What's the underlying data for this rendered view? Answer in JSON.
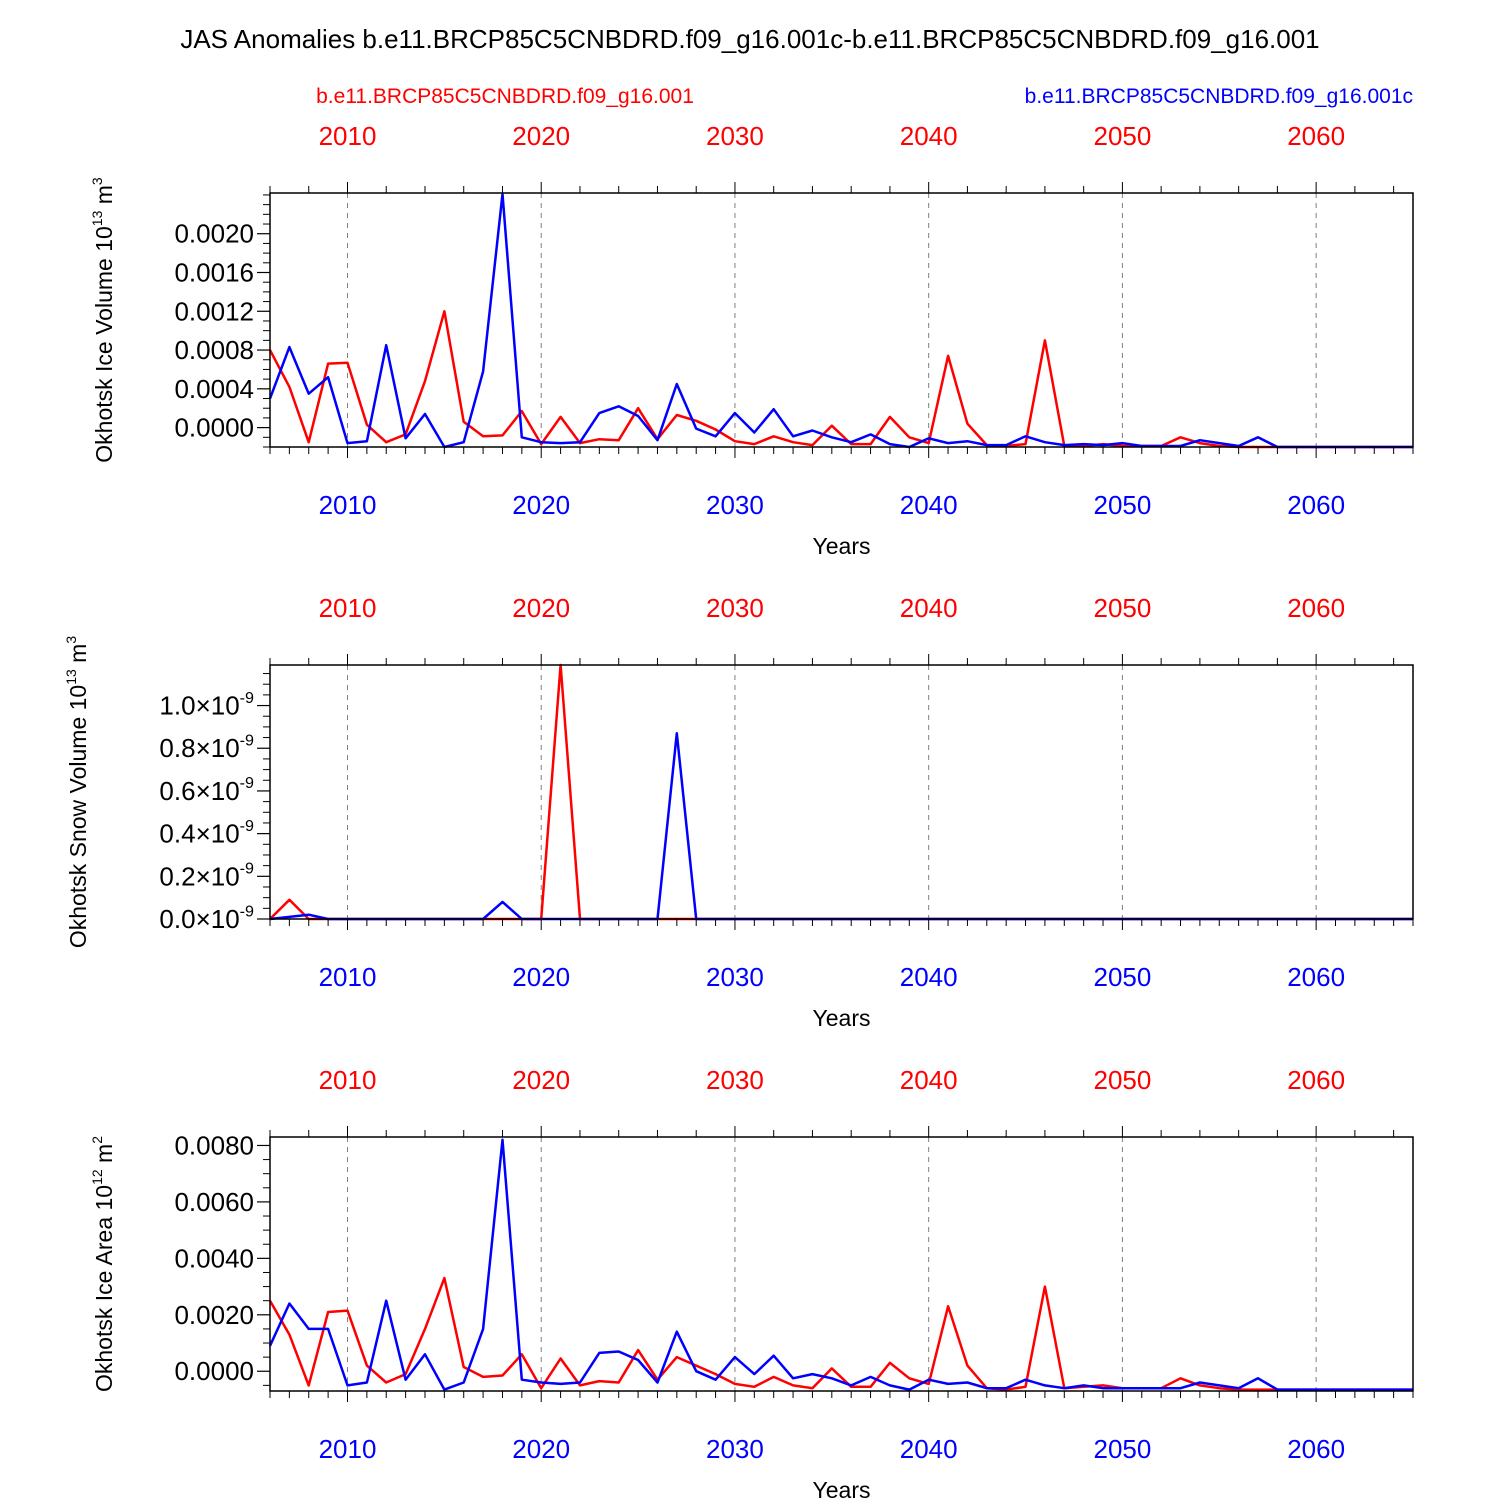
{
  "figure": {
    "title": "JAS Anomalies b.e11.BRCP85C5CNBDRD.f09_g16.001c-b.e11.BRCP85C5CNBDRD.f09_g16.001",
    "legend_left": "b.e11.BRCP85C5CNBDRD.f09_g16.001",
    "legend_right": "b.e11.BRCP85C5CNBDRD.f09_g16.001c",
    "colors": {
      "red_series": "#ff0000",
      "blue_series": "#0000ff",
      "axis": "#000000",
      "grid": "#808080"
    }
  },
  "chart_data": [
    {
      "type": "line",
      "ylabel": "Okhotsk Ice Volume 10",
      "ylabel_exp": "13",
      "ylabel_unit": " m",
      "ylabel_unit_exp": "3",
      "xlabel": "Years",
      "xlim": [
        2006,
        2065
      ],
      "ylim": [
        -0.0002,
        0.00242
      ],
      "x_ticks": [
        "2010",
        "2020",
        "2030",
        "2040",
        "2050",
        "2060"
      ],
      "y_ticks": [
        {
          "value": 0.0,
          "label": "0.0000"
        },
        {
          "value": 0.0004,
          "label": "0.0004"
        },
        {
          "value": 0.0008,
          "label": "0.0008"
        },
        {
          "value": 0.0012,
          "label": "0.0012"
        },
        {
          "value": 0.0016,
          "label": "0.0016"
        },
        {
          "value": 0.002,
          "label": "0.0020"
        }
      ],
      "y_minor": [
        -0.0002,
        -0.0001,
        0.0001,
        0.0002,
        0.0003,
        0.0005,
        0.0006,
        0.0007,
        0.0009,
        0.001,
        0.0011,
        0.0013,
        0.0014,
        0.0015,
        0.0017,
        0.0018,
        0.0019,
        0.0021,
        0.0022,
        0.0023,
        0.0024
      ],
      "grid_x": true,
      "x_start": 2006,
      "series": [
        {
          "name": "b.e11.BRCP85C5CNBDRD.f09_g16.001",
          "color": "#ff0000",
          "values": [
            0.0008,
            0.00042,
            -0.00015,
            0.00066,
            0.00067,
            3e-05,
            -0.00015,
            -7e-05,
            0.00048,
            0.0012,
            6e-05,
            -9e-05,
            -8e-05,
            0.00017,
            -0.00017,
            0.00011,
            -0.00016,
            -0.00012,
            -0.00013,
            0.0002,
            -0.00012,
            0.00013,
            7e-05,
            -2e-05,
            -0.00014,
            -0.00017,
            -9e-05,
            -0.00015,
            -0.00018,
            2e-05,
            -0.00017,
            -0.00017,
            0.00011,
            -0.0001,
            -0.00016,
            0.00074,
            4e-05,
            -0.00018,
            -0.00019,
            -0.00017,
            0.0009,
            -0.00019,
            -0.00019,
            -0.00017,
            -0.00019,
            -0.00019,
            -0.00019,
            -0.0001,
            -0.00016,
            -0.00019,
            -0.0002,
            -0.0002,
            -0.0002,
            -0.0002,
            -0.0002,
            -0.0002,
            -0.0002,
            -0.0002,
            -0.0002,
            -0.0002
          ]
        },
        {
          "name": "b.e11.BRCP85C5CNBDRD.f09_g16.001c",
          "color": "#0000ff",
          "values": [
            0.0003,
            0.00083,
            0.00035,
            0.00052,
            -0.00016,
            -0.00014,
            0.00085,
            -0.00011,
            0.00014,
            -0.0002,
            -0.00015,
            0.00058,
            0.00241,
            -0.0001,
            -0.00015,
            -0.00016,
            -0.00015,
            0.00015,
            0.00022,
            0.00012,
            -0.00013,
            0.00045,
            -1e-05,
            -9e-05,
            0.00015,
            -5e-05,
            0.00019,
            -9e-05,
            -3e-05,
            -0.0001,
            -0.00015,
            -7e-05,
            -0.00017,
            -0.0002,
            -0.00011,
            -0.00016,
            -0.00014,
            -0.00018,
            -0.00018,
            -9e-05,
            -0.00015,
            -0.00018,
            -0.00017,
            -0.00018,
            -0.00016,
            -0.00019,
            -0.00019,
            -0.00019,
            -0.00013,
            -0.00016,
            -0.00019,
            -0.0001,
            -0.0002,
            -0.0002,
            -0.0002,
            -0.0002,
            -0.0002,
            -0.0002,
            -0.0002,
            -0.0002
          ]
        }
      ]
    },
    {
      "type": "line",
      "ylabel": "Okhotsk Snow Volume 10",
      "ylabel_exp": "13",
      "ylabel_unit": " m",
      "ylabel_unit_exp": "3",
      "xlabel": "Years",
      "xlim": [
        2006,
        2065
      ],
      "ylim": [
        0.0,
        1.19
      ],
      "y_unit_note": "values in units of 1e-9",
      "x_ticks": [
        "2010",
        "2020",
        "2030",
        "2040",
        "2050",
        "2060"
      ],
      "y_ticks": [
        {
          "value": 0.0,
          "label": "0.0×10",
          "exp": "-9"
        },
        {
          "value": 0.2,
          "label": "0.2×10",
          "exp": "-9"
        },
        {
          "value": 0.4,
          "label": "0.4×10",
          "exp": "-9"
        },
        {
          "value": 0.6,
          "label": "0.6×10",
          "exp": "-9"
        },
        {
          "value": 0.8,
          "label": "0.8×10",
          "exp": "-9"
        },
        {
          "value": 1.0,
          "label": "1.0×10",
          "exp": "-9"
        }
      ],
      "y_minor": [
        0.05,
        0.1,
        0.15,
        0.25,
        0.3,
        0.35,
        0.45,
        0.5,
        0.55,
        0.65,
        0.7,
        0.75,
        0.85,
        0.9,
        0.95,
        1.05,
        1.1,
        1.15
      ],
      "grid_x": true,
      "x_start": 2006,
      "series": [
        {
          "name": "b.e11.BRCP85C5CNBDRD.f09_g16.001",
          "color": "#ff0000",
          "values": [
            0.0,
            0.09,
            0.0,
            0.0,
            0.0,
            0.0,
            0.0,
            0.0,
            0.0,
            0.0,
            0.0,
            0.0,
            0.0,
            0.0,
            0.0,
            1.19,
            0.0,
            0.0,
            0.0,
            0.0,
            0.0,
            0.0,
            0.0,
            0.0,
            0.0,
            0.0,
            0.0,
            0.0,
            0.0,
            0.0,
            0.0,
            0.0,
            0.0,
            0.0,
            0.0,
            0.0,
            0.0,
            0.0,
            0.0,
            0.0,
            0.0,
            0.0,
            0.0,
            0.0,
            0.0,
            0.0,
            0.0,
            0.0,
            0.0,
            0.0,
            0.0,
            0.0,
            0.0,
            0.0,
            0.0,
            0.0,
            0.0,
            0.0,
            0.0,
            0.0
          ]
        },
        {
          "name": "b.e11.BRCP85C5CNBDRD.f09_g16.001c",
          "color": "#0000ff",
          "values": [
            0.0,
            0.01,
            0.02,
            0.0,
            0.0,
            0.0,
            0.0,
            0.0,
            0.0,
            0.0,
            0.0,
            0.0,
            0.08,
            0.0,
            0.0,
            0.0,
            0.0,
            0.0,
            0.0,
            0.0,
            0.0,
            0.87,
            0.0,
            0.0,
            0.0,
            0.0,
            0.0,
            0.0,
            0.0,
            0.0,
            0.0,
            0.0,
            0.0,
            0.0,
            0.0,
            0.0,
            0.0,
            0.0,
            0.0,
            0.0,
            0.0,
            0.0,
            0.0,
            0.0,
            0.0,
            0.0,
            0.0,
            0.0,
            0.0,
            0.0,
            0.0,
            0.0,
            0.0,
            0.0,
            0.0,
            0.0,
            0.0,
            0.0,
            0.0,
            0.0
          ]
        }
      ]
    },
    {
      "type": "line",
      "ylabel": "Okhotsk Ice Area 10",
      "ylabel_exp": "12",
      "ylabel_unit": " m",
      "ylabel_unit_exp": "2",
      "xlabel": "Years",
      "xlim": [
        2006,
        2065
      ],
      "ylim": [
        -0.0007,
        0.0083
      ],
      "x_ticks": [
        "2010",
        "2020",
        "2030",
        "2040",
        "2050",
        "2060"
      ],
      "y_ticks": [
        {
          "value": 0.0,
          "label": "0.0000"
        },
        {
          "value": 0.002,
          "label": "0.0020"
        },
        {
          "value": 0.004,
          "label": "0.0040"
        },
        {
          "value": 0.006,
          "label": "0.0060"
        },
        {
          "value": 0.008,
          "label": "0.0080"
        }
      ],
      "y_minor": [
        -0.0005,
        0.0005,
        0.001,
        0.0015,
        0.0025,
        0.003,
        0.0035,
        0.0045,
        0.005,
        0.0055,
        0.0065,
        0.007,
        0.0075
      ],
      "grid_x": true,
      "x_start": 2006,
      "series": [
        {
          "name": "b.e11.BRCP85C5CNBDRD.f09_g16.001",
          "color": "#ff0000",
          "values": [
            0.0025,
            0.0013,
            -0.0005,
            0.0021,
            0.00215,
            0.0002,
            -0.0004,
            -0.0001,
            0.0015,
            0.0033,
            0.00015,
            -0.0002,
            -0.00015,
            0.0006,
            -0.0006,
            0.00045,
            -0.0005,
            -0.00035,
            -0.0004,
            0.00075,
            -0.0003,
            0.0005,
            0.0002,
            -0.0001,
            -0.00045,
            -0.00055,
            -0.0002,
            -0.0005,
            -0.0006,
            0.0001,
            -0.00055,
            -0.00055,
            0.0003,
            -0.00025,
            -0.00045,
            0.0023,
            0.0002,
            -0.0006,
            -0.00065,
            -0.00055,
            0.003,
            -0.0006,
            -0.00055,
            -0.0005,
            -0.0006,
            -0.0006,
            -0.0006,
            -0.00025,
            -0.0005,
            -0.0006,
            -0.00065,
            -0.00065,
            -0.00065,
            -0.00065,
            -0.00065,
            -0.00065,
            -0.00065,
            -0.00065,
            -0.00065,
            -0.00065
          ]
        },
        {
          "name": "b.e11.BRCP85C5CNBDRD.f09_g16.001c",
          "color": "#0000ff",
          "values": [
            0.0009,
            0.0024,
            0.0015,
            0.0015,
            -0.0005,
            -0.0004,
            0.0025,
            -0.0003,
            0.0006,
            -0.00065,
            -0.0004,
            0.0015,
            0.0082,
            -0.0003,
            -0.0004,
            -0.00045,
            -0.0004,
            0.00065,
            0.0007,
            0.0004,
            -0.0004,
            0.0014,
            0.0,
            -0.0003,
            0.0005,
            -0.0001,
            0.00055,
            -0.00025,
            -0.0001,
            -0.00025,
            -0.0005,
            -0.0002,
            -0.0005,
            -0.00065,
            -0.0003,
            -0.00045,
            -0.0004,
            -0.0006,
            -0.0006,
            -0.0003,
            -0.0005,
            -0.0006,
            -0.0005,
            -0.0006,
            -0.0006,
            -0.0006,
            -0.0006,
            -0.0006,
            -0.0004,
            -0.0005,
            -0.0006,
            -0.00025,
            -0.00065,
            -0.00065,
            -0.00065,
            -0.00065,
            -0.00065,
            -0.00065,
            -0.00065,
            -0.00065
          ]
        }
      ]
    }
  ]
}
